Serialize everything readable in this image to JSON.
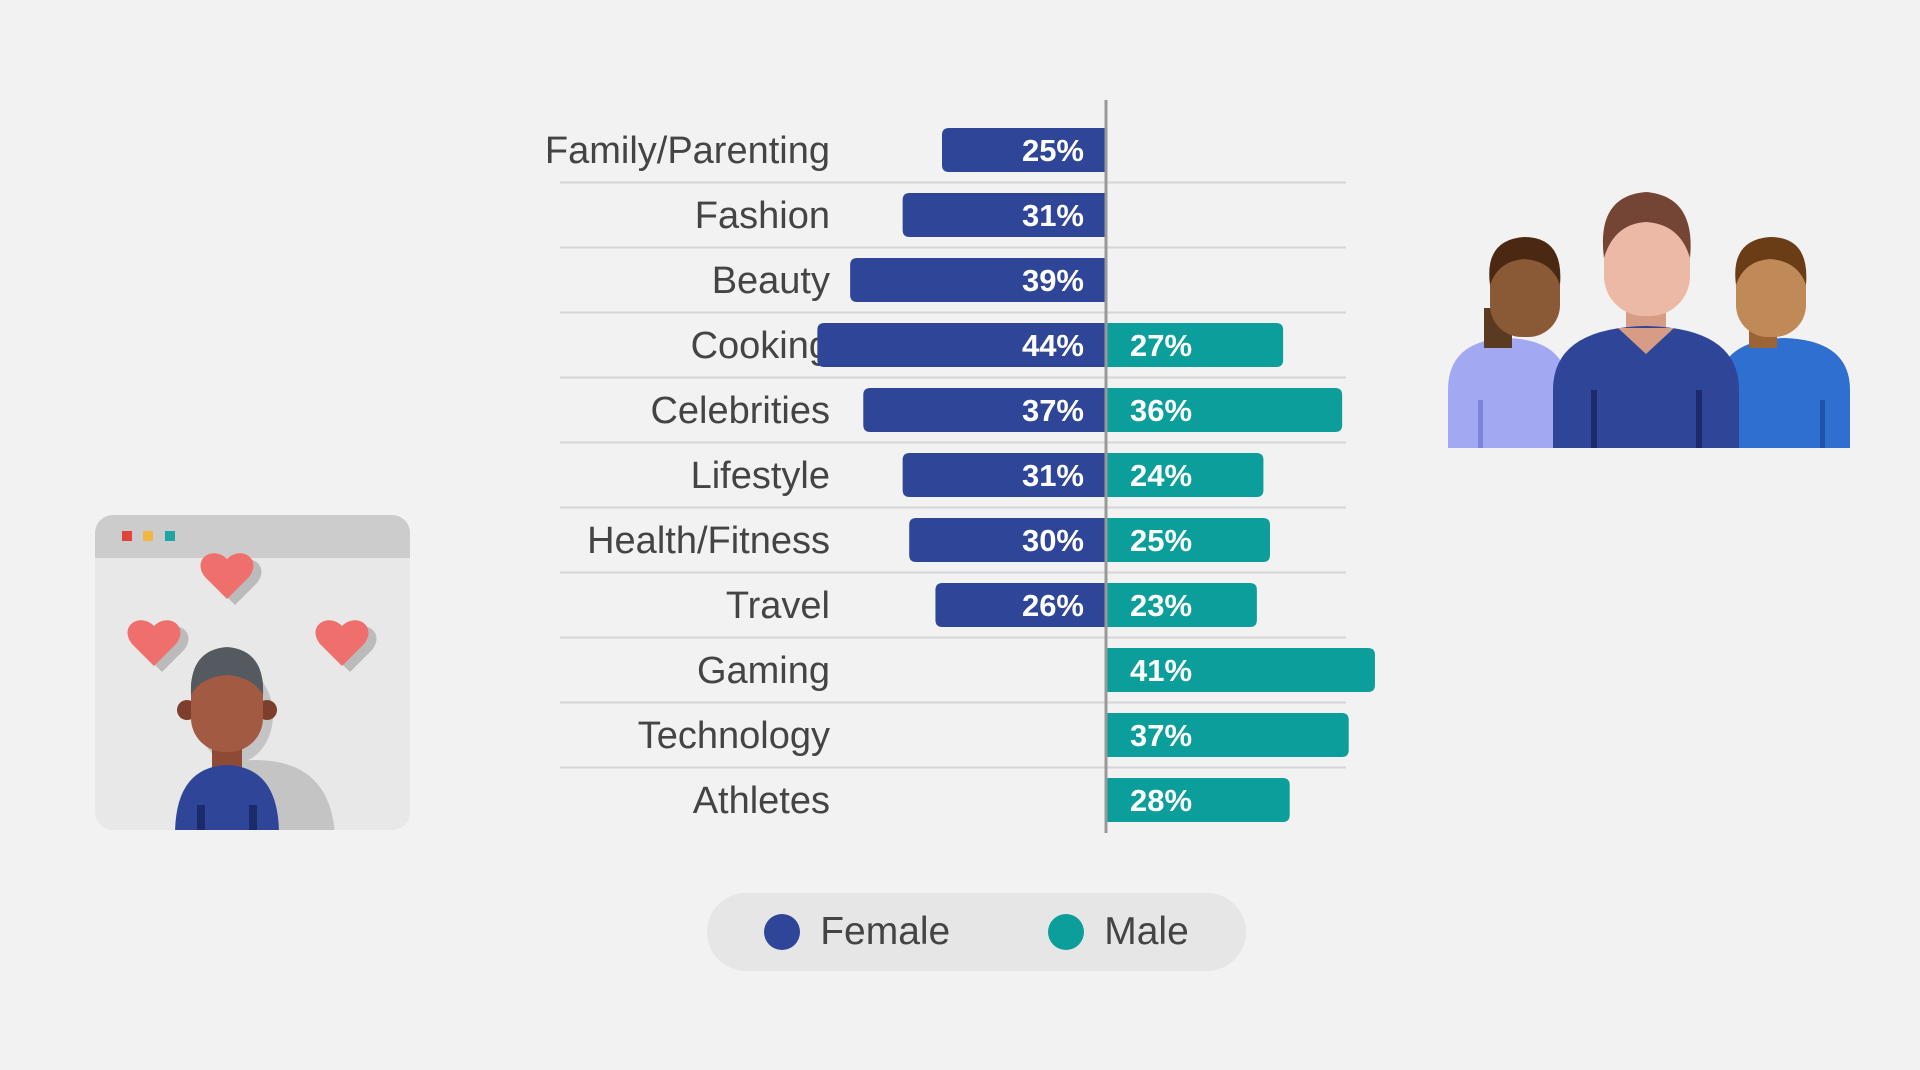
{
  "chart_data": {
    "type": "bar",
    "orientation": "horizontal-diverging",
    "categories": [
      "Family/Parenting",
      "Fashion",
      "Beauty",
      "Cooking",
      "Celebrities",
      "Lifestyle",
      "Health/Fitness",
      "Travel",
      "Gaming",
      "Technology",
      "Athletes"
    ],
    "series": [
      {
        "name": "Female",
        "color": "#2e4598",
        "values": [
          25,
          31,
          39,
          44,
          37,
          31,
          30,
          26,
          null,
          null,
          null
        ],
        "labels": [
          "25%",
          "31%",
          "39%",
          "44%",
          "37%",
          "31%",
          "30%",
          "26%",
          "",
          "",
          ""
        ]
      },
      {
        "name": "Male",
        "color": "#0c9e9a",
        "values": [
          null,
          null,
          null,
          27,
          36,
          24,
          25,
          23,
          41,
          37,
          28
        ],
        "labels": [
          "",
          "",
          "",
          "27%",
          "36%",
          "24%",
          "25%",
          "23%",
          "41%",
          "37%",
          "28%"
        ]
      }
    ],
    "legend": "bottom-center",
    "grid": false
  },
  "legend": {
    "female_label": "Female",
    "male_label": "Male",
    "female_color": "#2e4598",
    "male_color": "#0c9e9a"
  },
  "illustrations": {
    "left": "person-with-hearts-icon",
    "right": "group-of-people-icon"
  }
}
